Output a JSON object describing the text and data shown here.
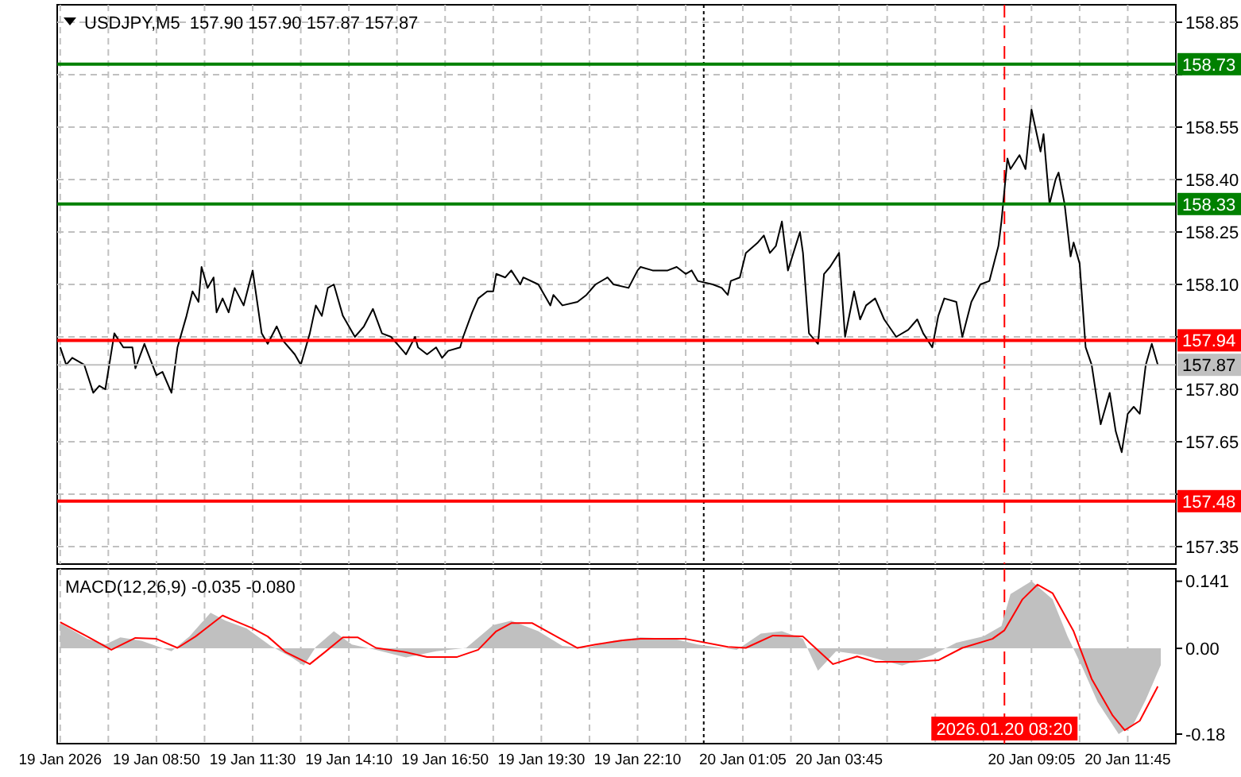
{
  "chart_data": [
    {
      "type": "line",
      "title": "USDJPY,M5  157.90 157.90 157.87 157.87",
      "xlim": [
        "2026-01-19T06:05",
        "2026-01-20T13:05"
      ],
      "ylim": [
        157.3,
        158.9
      ],
      "xticks": [
        {
          "value": "2026-01-19T06:10",
          "label": null
        },
        {
          "value": "2026-01-19T07:30",
          "label": null
        },
        {
          "value": "2026-01-19T08:50",
          "label": null
        },
        {
          "value": "2026-01-19T10:10",
          "label": null
        },
        {
          "value": "2026-01-19T11:30",
          "label": null
        },
        {
          "value": "2026-01-19T12:50",
          "label": null
        },
        {
          "value": "2026-01-19T14:10",
          "label": null
        },
        {
          "value": "2026-01-19T15:30",
          "label": null
        },
        {
          "value": "2026-01-19T16:50",
          "label": null
        },
        {
          "value": "2026-01-19T18:10",
          "label": null
        },
        {
          "value": "2026-01-19T19:30",
          "label": null
        },
        {
          "value": "2026-01-19T20:50",
          "label": null
        },
        {
          "value": "2026-01-19T22:10",
          "label": null
        },
        {
          "value": "2026-01-19T23:30",
          "label": null
        },
        {
          "value": "2026-01-20T01:05",
          "label": null
        },
        {
          "value": "2026-01-20T02:25",
          "label": null
        },
        {
          "value": "2026-01-20T03:45",
          "label": null
        },
        {
          "value": "2026-01-20T05:05",
          "label": null
        },
        {
          "value": "2026-01-20T06:25",
          "label": null
        },
        {
          "value": "2026-01-20T07:45",
          "label": null
        },
        {
          "value": "2026-01-20T09:05",
          "label": null
        },
        {
          "value": "2026-01-20T10:25",
          "label": null
        },
        {
          "value": "2026-01-20T11:45",
          "label": null
        }
      ],
      "yticks": [
        158.85,
        {
          "value": 158.7,
          "label": null
        },
        158.55,
        {
          "value": 158.4,
          "label": "158.40"
        },
        158.25,
        {
          "value": 158.1,
          "label": "158.10"
        },
        {
          "value": 157.95,
          "label": null
        },
        {
          "value": 157.8,
          "label": "157.80"
        },
        157.65,
        {
          "value": 157.5,
          "label": null
        },
        157.35
      ],
      "tick_labels": "y",
      "grid": true,
      "series": [
        {
          "color": "#000000",
          "x": [
            "2026-01-19T06:10",
            "2026-01-19T06:20",
            "2026-01-19T06:30",
            "2026-01-19T06:50",
            "2026-01-19T07:05",
            "2026-01-19T07:15",
            "2026-01-19T07:25",
            "2026-01-19T07:40",
            "2026-01-19T07:55",
            "2026-01-19T08:10",
            "2026-01-19T08:15",
            "2026-01-19T08:30",
            "2026-01-19T08:50",
            "2026-01-19T09:00",
            "2026-01-19T09:15",
            "2026-01-19T09:25",
            "2026-01-19T09:40",
            "2026-01-19T09:50",
            "2026-01-19T10:00",
            "2026-01-19T10:05",
            "2026-01-19T10:15",
            "2026-01-19T10:25",
            "2026-01-19T10:30",
            "2026-01-19T10:40",
            "2026-01-19T10:50",
            "2026-01-19T11:00",
            "2026-01-19T11:15",
            "2026-01-19T11:30",
            "2026-01-19T11:45",
            "2026-01-19T11:55",
            "2026-01-19T12:10",
            "2026-01-19T12:20",
            "2026-01-19T12:40",
            "2026-01-19T12:50",
            "2026-01-19T13:05",
            "2026-01-19T13:15",
            "2026-01-19T13:25",
            "2026-01-19T13:35",
            "2026-01-19T13:45",
            "2026-01-19T14:00",
            "2026-01-19T14:20",
            "2026-01-19T14:35",
            "2026-01-19T14:50",
            "2026-01-19T15:05",
            "2026-01-19T15:20",
            "2026-01-19T15:35",
            "2026-01-19T15:45",
            "2026-01-19T16:00",
            "2026-01-19T16:05",
            "2026-01-19T16:20",
            "2026-01-19T16:35",
            "2026-01-19T16:45",
            "2026-01-19T16:55",
            "2026-01-19T17:15",
            "2026-01-19T17:20",
            "2026-01-19T17:35",
            "2026-01-19T17:45",
            "2026-01-19T18:00",
            "2026-01-19T18:10",
            "2026-01-19T18:15",
            "2026-01-19T18:30",
            "2026-01-19T18:40",
            "2026-01-19T18:55",
            "2026-01-19T19:00",
            "2026-01-19T19:25",
            "2026-01-19T19:35",
            "2026-01-19T19:45",
            "2026-01-19T19:50",
            "2026-01-19T20:05",
            "2026-01-19T20:30",
            "2026-01-19T20:45",
            "2026-01-19T21:00",
            "2026-01-19T21:20",
            "2026-01-19T21:30",
            "2026-01-19T21:55",
            "2026-01-19T22:10",
            "2026-01-19T22:15",
            "2026-01-19T22:35",
            "2026-01-19T22:45",
            "2026-01-19T23:00",
            "2026-01-19T23:15",
            "2026-01-19T23:30",
            "2026-01-19T23:40",
            "2026-01-19T23:50",
            "2026-01-20T00:15",
            "2026-01-20T00:30",
            "2026-01-20T00:40",
            "2026-01-20T00:45",
            "2026-01-20T01:00",
            "2026-01-20T01:10",
            "2026-01-20T01:30",
            "2026-01-20T01:40",
            "2026-01-20T01:50",
            "2026-01-20T02:00",
            "2026-01-20T02:10",
            "2026-01-20T02:20",
            "2026-01-20T02:40",
            "2026-01-20T02:45",
            "2026-01-20T02:55",
            "2026-01-20T03:10",
            "2026-01-20T03:20",
            "2026-01-20T03:30",
            "2026-01-20T03:45",
            "2026-01-20T03:55",
            "2026-01-20T04:10",
            "2026-01-20T04:20",
            "2026-01-20T04:30",
            "2026-01-20T04:45",
            "2026-01-20T05:00",
            "2026-01-20T05:20",
            "2026-01-20T05:40",
            "2026-01-20T05:55",
            "2026-01-20T06:05",
            "2026-01-20T06:20",
            "2026-01-20T06:30",
            "2026-01-20T06:40",
            "2026-01-20T07:00",
            "2026-01-20T07:10",
            "2026-01-20T07:25",
            "2026-01-20T07:40",
            "2026-01-20T07:55",
            "2026-01-20T08:10",
            "2026-01-20T08:15",
            "2026-01-20T08:25",
            "2026-01-20T08:30",
            "2026-01-20T08:45",
            "2026-01-20T08:55",
            "2026-01-20T09:05",
            "2026-01-20T09:20",
            "2026-01-20T09:25",
            "2026-01-20T09:35",
            "2026-01-20T09:45",
            "2026-01-20T09:50",
            "2026-01-20T10:00",
            "2026-01-20T10:10",
            "2026-01-20T10:15",
            "2026-01-20T10:25",
            "2026-01-20T10:35",
            "2026-01-20T10:45",
            "2026-01-20T11:00",
            "2026-01-20T11:15",
            "2026-01-20T11:25",
            "2026-01-20T11:35",
            "2026-01-20T11:45",
            "2026-01-20T11:55",
            "2026-01-20T12:05",
            "2026-01-20T12:15",
            "2026-01-20T12:25",
            "2026-01-20T12:35"
          ],
          "values": [
            157.92,
            157.87,
            157.89,
            157.87,
            157.79,
            157.81,
            157.8,
            157.96,
            157.92,
            157.92,
            157.86,
            157.93,
            157.84,
            157.85,
            157.79,
            157.92,
            158.01,
            158.08,
            158.05,
            158.15,
            158.09,
            158.12,
            158.02,
            158.06,
            158.02,
            158.09,
            158.04,
            158.14,
            157.96,
            157.93,
            157.98,
            157.94,
            157.9,
            157.87,
            157.96,
            158.04,
            158.01,
            158.09,
            158.1,
            158.01,
            157.95,
            157.98,
            158.03,
            157.96,
            157.95,
            157.92,
            157.9,
            157.95,
            157.92,
            157.9,
            157.92,
            157.89,
            157.91,
            157.92,
            157.95,
            158.02,
            158.06,
            158.08,
            158.08,
            158.13,
            158.12,
            158.14,
            158.1,
            158.12,
            158.1,
            158.07,
            158.04,
            158.07,
            158.04,
            158.05,
            158.07,
            158.1,
            158.12,
            158.1,
            158.09,
            158.14,
            158.15,
            158.14,
            158.14,
            158.14,
            158.15,
            158.13,
            158.14,
            158.11,
            158.1,
            158.09,
            158.07,
            158.11,
            158.12,
            158.19,
            158.22,
            158.24,
            158.19,
            158.21,
            158.28,
            158.14,
            158.25,
            158.19,
            157.96,
            157.93,
            158.13,
            158.15,
            158.19,
            157.95,
            158.08,
            158.0,
            158.04,
            158.06,
            158.0,
            157.95,
            157.97,
            158.0,
            157.96,
            157.92,
            158.01,
            158.06,
            158.05,
            157.95,
            158.05,
            158.1,
            158.11,
            158.21,
            158.28,
            158.46,
            158.43,
            158.47,
            158.43,
            158.6,
            158.48,
            158.53,
            158.33,
            158.4,
            158.42,
            158.33,
            158.18,
            158.22,
            158.16,
            157.92,
            157.87,
            157.7,
            157.79,
            157.68,
            157.62,
            157.73,
            157.75,
            157.73,
            157.87,
            157.93,
            157.87
          ]
        }
      ],
      "ref_lines": [
        {
          "axis": "y",
          "value": 158.73,
          "label": "158.73",
          "color": "#008000"
        },
        {
          "axis": "y",
          "value": 158.33,
          "label": "158.33",
          "color": "#008000"
        },
        {
          "axis": "y",
          "value": 157.94,
          "label": "157.94",
          "color": "#ff0000"
        },
        {
          "axis": "y",
          "value": 157.87,
          "label": "157.87",
          "color": "#c0c0c0"
        },
        {
          "axis": "y",
          "value": 157.48,
          "label": "157.48",
          "color": "#ff0000"
        },
        {
          "axis": "x",
          "value": "2026-01-20T00:00",
          "color": "#000000",
          "line_style": "dotted"
        },
        {
          "axis": "x",
          "value": "2026-01-20T08:20",
          "color": "#ff0000",
          "line_style": "dashed"
        }
      ]
    },
    {
      "type": "line",
      "title": "MACD(12,26,9) -0.035 -0.080",
      "xlim": [
        "2026-01-19T06:05",
        "2026-01-20T13:05"
      ],
      "ylim": [
        -0.2,
        0.167
      ],
      "xticks": [
        {
          "value": "2026-01-19T06:10",
          "label": "19 Jan 2026"
        },
        {
          "value": "2026-01-19T07:30",
          "label": null
        },
        {
          "value": "2026-01-19T08:50",
          "label": "19 Jan 08:50"
        },
        {
          "value": "2026-01-19T10:10",
          "label": null
        },
        {
          "value": "2026-01-19T11:30",
          "label": "19 Jan 11:30"
        },
        {
          "value": "2026-01-19T12:50",
          "label": null
        },
        {
          "value": "2026-01-19T14:10",
          "label": "19 Jan 14:10"
        },
        {
          "value": "2026-01-19T15:30",
          "label": null
        },
        {
          "value": "2026-01-19T16:50",
          "label": "19 Jan 16:50"
        },
        {
          "value": "2026-01-19T18:10",
          "label": null
        },
        {
          "value": "2026-01-19T19:30",
          "label": "19 Jan 19:30"
        },
        {
          "value": "2026-01-19T20:50",
          "label": null
        },
        {
          "value": "2026-01-19T22:10",
          "label": "19 Jan 22:10"
        },
        {
          "value": "2026-01-19T23:30",
          "label": null
        },
        {
          "value": "2026-01-20T01:05",
          "label": "20 Jan 01:05"
        },
        {
          "value": "2026-01-20T02:25",
          "label": null
        },
        {
          "value": "2026-01-20T03:45",
          "label": "20 Jan 03:45"
        },
        {
          "value": "2026-01-20T05:05",
          "label": null
        },
        {
          "value": "2026-01-20T06:25",
          "label": null
        },
        {
          "value": "2026-01-20T07:45",
          "label": null
        },
        {
          "value": "2026-01-20T09:05",
          "label": "20 Jan 09:05"
        },
        {
          "value": "2026-01-20T10:25",
          "label": null
        },
        {
          "value": "2026-01-20T11:45",
          "label": "20 Jan 11:45"
        }
      ],
      "yticks": [
        0.141,
        {
          "value": 0,
          "label": "0.00"
        },
        -0.18
      ],
      "grid": "x",
      "series": [
        {
          "type": "area",
          "color": "#c0c0c0",
          "x": [
            "2026-01-19T06:10",
            "2026-01-19T06:55",
            "2026-01-19T07:25",
            "2026-01-19T07:50",
            "2026-01-19T08:25",
            "2026-01-19T09:15",
            "2026-01-19T09:45",
            "2026-01-19T10:20",
            "2026-01-19T10:45",
            "2026-01-19T11:20",
            "2026-01-19T12:00",
            "2026-01-19T12:35",
            "2026-01-19T12:55",
            "2026-01-19T13:15",
            "2026-01-19T13:45",
            "2026-01-19T14:15",
            "2026-01-19T14:55",
            "2026-01-19T15:45",
            "2026-01-19T16:35",
            "2026-01-19T17:25",
            "2026-01-19T18:10",
            "2026-01-19T18:40",
            "2026-01-19T19:25",
            "2026-01-19T20:05",
            "2026-01-19T20:45",
            "2026-01-19T21:30",
            "2026-01-19T22:15",
            "2026-01-19T23:10",
            "2026-01-19T23:50",
            "2026-01-20T00:55",
            "2026-01-20T01:35",
            "2026-01-20T02:10",
            "2026-01-20T02:45",
            "2026-01-20T03:10",
            "2026-01-20T03:40",
            "2026-01-20T04:25",
            "2026-01-20T05:30",
            "2026-01-20T06:20",
            "2026-01-20T07:00",
            "2026-01-20T07:45",
            "2026-01-20T08:15",
            "2026-01-20T08:30",
            "2026-01-20T09:05",
            "2026-01-20T09:40",
            "2026-01-20T10:05",
            "2026-01-20T10:30",
            "2026-01-20T10:55",
            "2026-01-20T11:30",
            "2026-01-20T11:55",
            "2026-01-20T12:15",
            "2026-01-20T12:40"
          ],
          "values": [
            0.053,
            0.02,
            0.008,
            0.023,
            0.016,
            -0.006,
            0.025,
            0.075,
            0.058,
            0.042,
            0.005,
            -0.019,
            -0.036,
            0.003,
            0.036,
            0.008,
            -0.003,
            -0.019,
            -0.006,
            0.001,
            0.049,
            0.058,
            0.036,
            0.005,
            0.001,
            0.016,
            0.023,
            0.02,
            0.008,
            -0.003,
            0.031,
            0.036,
            0.02,
            -0.047,
            -0.006,
            -0.014,
            -0.036,
            -0.014,
            0.012,
            0.025,
            0.047,
            0.114,
            0.141,
            0.103,
            0.025,
            -0.041,
            -0.113,
            -0.18,
            -0.158,
            -0.108,
            -0.035
          ]
        },
        {
          "type": "line",
          "color": "#ff0000",
          "x": [
            "2026-01-19T06:10",
            "2026-01-19T06:55",
            "2026-01-19T07:35",
            "2026-01-19T08:15",
            "2026-01-19T08:50",
            "2026-01-19T09:25",
            "2026-01-19T09:55",
            "2026-01-19T10:40",
            "2026-01-19T11:00",
            "2026-01-19T11:30",
            "2026-01-19T11:55",
            "2026-01-19T12:25",
            "2026-01-19T13:05",
            "2026-01-19T13:30",
            "2026-01-19T14:00",
            "2026-01-19T14:25",
            "2026-01-19T14:55",
            "2026-01-19T15:45",
            "2026-01-19T16:20",
            "2026-01-19T17:10",
            "2026-01-19T17:45",
            "2026-01-19T18:15",
            "2026-01-19T18:40",
            "2026-01-19T19:15",
            "2026-01-19T19:55",
            "2026-01-19T20:30",
            "2026-01-19T21:00",
            "2026-01-19T21:45",
            "2026-01-19T22:15",
            "2026-01-19T23:30",
            "2026-01-20T00:40",
            "2026-01-20T01:10",
            "2026-01-20T01:55",
            "2026-01-20T02:45",
            "2026-01-20T03:35",
            "2026-01-20T04:15",
            "2026-01-20T04:45",
            "2026-01-20T05:45",
            "2026-01-20T06:30",
            "2026-01-20T07:10",
            "2026-01-20T08:00",
            "2026-01-20T08:20",
            "2026-01-20T08:50",
            "2026-01-20T09:15",
            "2026-01-20T09:40",
            "2026-01-20T10:15",
            "2026-01-20T10:45",
            "2026-01-20T11:20",
            "2026-01-20T11:40",
            "2026-01-20T12:05",
            "2026-01-20T12:35"
          ],
          "values": [
            0.055,
            0.025,
            -0.003,
            0.022,
            0.02,
            0.001,
            0.025,
            0.069,
            0.058,
            0.042,
            0.025,
            -0.008,
            -0.033,
            -0.008,
            0.023,
            0.023,
            0.001,
            -0.008,
            -0.018,
            -0.018,
            -0.003,
            0.036,
            0.053,
            0.053,
            0.025,
            0.001,
            0.008,
            0.017,
            0.02,
            0.02,
            0.003,
            0.001,
            0.027,
            0.025,
            -0.033,
            -0.017,
            -0.028,
            -0.028,
            -0.025,
            0.001,
            0.02,
            0.038,
            0.103,
            0.134,
            0.116,
            0.036,
            -0.064,
            -0.141,
            -0.172,
            -0.152,
            -0.08
          ]
        }
      ],
      "ref_lines": [
        {
          "axis": "x",
          "value": "2026-01-20T00:00",
          "color": "#000000",
          "line_style": "dotted"
        },
        {
          "axis": "x",
          "value": "2026-01-20T08:20",
          "color": "#ff0000",
          "line_style": "dashed",
          "label": "2026.01.20 08:20"
        }
      ]
    }
  ]
}
